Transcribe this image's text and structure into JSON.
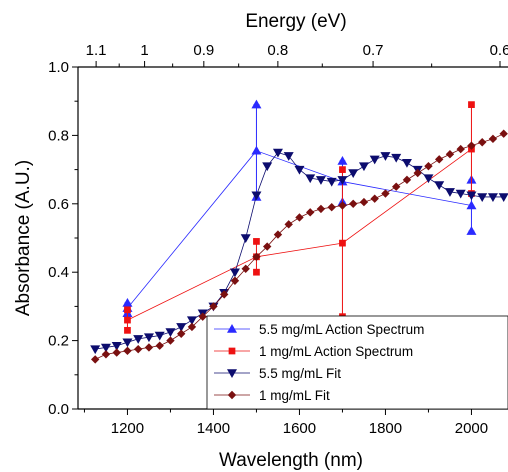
{
  "chart_data": {
    "type": "scatter",
    "xlabel": "Wavelength (nm)",
    "ylabel": "Absorbance (A.U.)",
    "top_xlabel": "Energy (eV)",
    "xlim": [
      1085,
      2085
    ],
    "ylim": [
      0.0,
      1.0
    ],
    "x_ticks": [
      1200,
      1400,
      1600,
      1800,
      2000
    ],
    "x_tick_labels": [
      "1200",
      "1400",
      "1600",
      "1800",
      "2000"
    ],
    "y_ticks": [
      0.0,
      0.2,
      0.4,
      0.6,
      0.8,
      1.0
    ],
    "y_tick_labels": [
      "0.0",
      "0.2",
      "0.4",
      "0.6",
      "0.8",
      "1.0"
    ],
    "top_ticks_ev": [
      1.1,
      1.0,
      0.9,
      0.8,
      0.7,
      0.6
    ],
    "top_tick_labels": [
      "1.1",
      "1",
      "0.9",
      "0.8",
      "0.7",
      "0.6"
    ],
    "legend_position": "bottom-right",
    "series": [
      {
        "name": "5.5 mg/mL Action Spectrum",
        "marker": "triangle-up",
        "color": "#2a2aff",
        "x": [
          1200,
          1500,
          1700,
          2000
        ],
        "y": [
          0.295,
          0.755,
          0.665,
          0.595
        ],
        "y_err": [
          0.015,
          0.135,
          0.06,
          0.075
        ]
      },
      {
        "name": "1 mg/mL Action Spectrum",
        "marker": "square",
        "color": "#ee1111",
        "x": [
          1200,
          1500,
          1700,
          2000
        ],
        "y": [
          0.26,
          0.445,
          0.485,
          0.76
        ],
        "y_err": [
          0.03,
          0.045,
          0.215,
          0.13
        ]
      },
      {
        "name": "5.5 mg/mL Fit",
        "marker": "triangle-down",
        "color": "#0c0c6e",
        "x": [
          1125,
          1150,
          1175,
          1200,
          1225,
          1250,
          1275,
          1300,
          1325,
          1350,
          1375,
          1400,
          1425,
          1450,
          1475,
          1500,
          1525,
          1550,
          1575,
          1600,
          1625,
          1650,
          1675,
          1700,
          1725,
          1750,
          1775,
          1800,
          1825,
          1850,
          1875,
          1900,
          1925,
          1950,
          1975,
          2000,
          2025,
          2050,
          2075
        ],
        "y": [
          0.175,
          0.18,
          0.185,
          0.195,
          0.205,
          0.21,
          0.215,
          0.225,
          0.24,
          0.26,
          0.28,
          0.3,
          0.34,
          0.4,
          0.5,
          0.625,
          0.71,
          0.75,
          0.74,
          0.7,
          0.675,
          0.67,
          0.665,
          0.67,
          0.69,
          0.71,
          0.73,
          0.74,
          0.735,
          0.72,
          0.7,
          0.675,
          0.655,
          0.635,
          0.63,
          0.625,
          0.62,
          0.62,
          0.62
        ]
      },
      {
        "name": "1 mg/mL Fit",
        "marker": "diamond",
        "color": "#7a1010",
        "x": [
          1125,
          1150,
          1175,
          1200,
          1225,
          1250,
          1275,
          1300,
          1325,
          1350,
          1375,
          1400,
          1425,
          1450,
          1475,
          1500,
          1525,
          1550,
          1575,
          1600,
          1625,
          1650,
          1675,
          1700,
          1725,
          1750,
          1775,
          1800,
          1825,
          1850,
          1875,
          1900,
          1925,
          1950,
          1975,
          2000,
          2025,
          2050,
          2075
        ],
        "y": [
          0.145,
          0.16,
          0.165,
          0.17,
          0.175,
          0.18,
          0.185,
          0.2,
          0.22,
          0.24,
          0.27,
          0.3,
          0.335,
          0.375,
          0.41,
          0.445,
          0.475,
          0.51,
          0.54,
          0.56,
          0.575,
          0.585,
          0.59,
          0.595,
          0.6,
          0.605,
          0.615,
          0.63,
          0.65,
          0.67,
          0.69,
          0.71,
          0.73,
          0.745,
          0.76,
          0.77,
          0.78,
          0.79,
          0.805
        ]
      }
    ]
  }
}
